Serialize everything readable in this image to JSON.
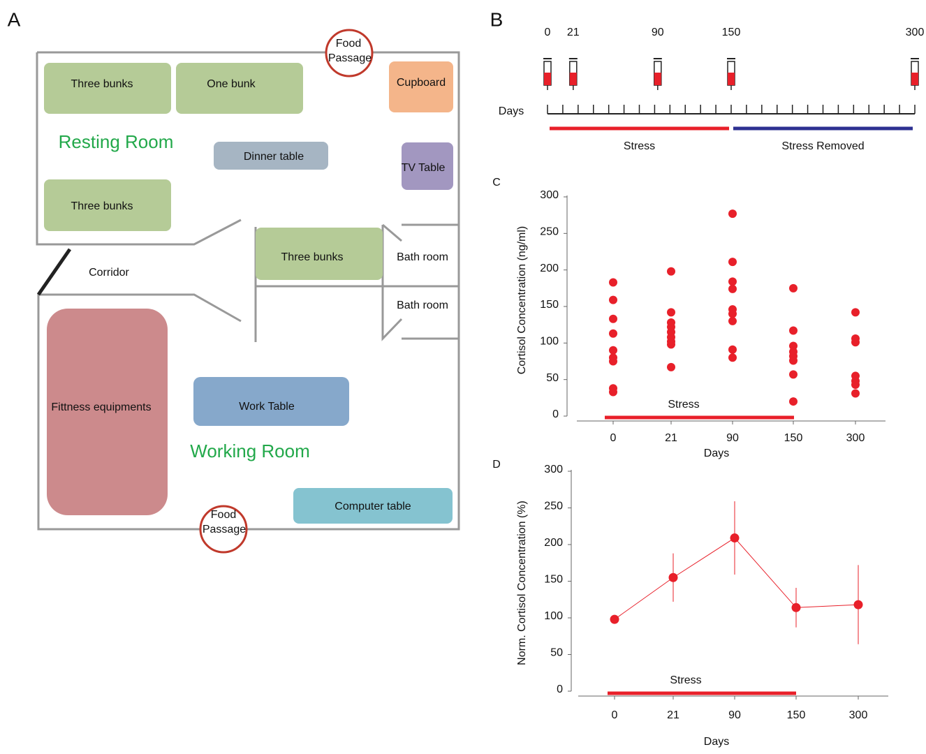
{
  "panel_labels": [
    "A",
    "B"
  ],
  "floor_plan": {
    "rooms": [
      {
        "label": "Three bunks"
      },
      {
        "label": "One bunk"
      },
      {
        "label": "Cupboard"
      },
      {
        "label": "Dinner table"
      },
      {
        "label": "TV Table"
      },
      {
        "label": "Three bunks"
      },
      {
        "label": "Three bunks"
      },
      {
        "label": "Fittness equipments"
      },
      {
        "label": "Work Table"
      },
      {
        "label": "Computer table"
      }
    ],
    "areas": [
      "Resting Room",
      "Working Room",
      "Corridor",
      "Bath room",
      "Bath room"
    ],
    "food_passages": [
      {
        "lines": [
          "Food",
          "Passage"
        ]
      },
      {
        "lines": [
          "Food",
          "Passage"
        ]
      }
    ]
  },
  "timeline": {
    "axis_label": "Days",
    "xlim": [
      0,
      300
    ],
    "sample_days": [
      0,
      21,
      90,
      150,
      300
    ],
    "phases": [
      {
        "name": "Stress",
        "color": "#e8202a",
        "start": 0,
        "end": 150
      },
      {
        "name": "Stress Removed",
        "color": "#2e3192",
        "start": 150,
        "end": 300
      }
    ]
  },
  "chart_data": [
    {
      "type": "scatter",
      "panel": "C",
      "ylabel": "Cortisol Concentration (ng/ml)",
      "xlabel": "Days",
      "categories": [
        "0",
        "21",
        "90",
        "150",
        "300"
      ],
      "color": "#e8202a",
      "values": [
        [
          183,
          159,
          133,
          113,
          90,
          80,
          75,
          38,
          33
        ],
        [
          198,
          142,
          128,
          122,
          115,
          108,
          102,
          98,
          67
        ],
        [
          277,
          211,
          184,
          174,
          146,
          140,
          130,
          91,
          80
        ],
        [
          175,
          117,
          96,
          88,
          82,
          76,
          57,
          20
        ],
        [
          142,
          106,
          101,
          55,
          48,
          43,
          31
        ]
      ],
      "ylim": [
        0,
        300
      ],
      "yticks": [
        0,
        50,
        100,
        150,
        200,
        250,
        300
      ],
      "annotation": {
        "text": "Stress",
        "color": "#e8202a"
      }
    },
    {
      "type": "line",
      "panel": "D",
      "ylabel": "Norm. Cortisol Concentration (%)",
      "xlabel": "Days",
      "categories": [
        "0",
        "21",
        "90",
        "150",
        "300"
      ],
      "color": "#e8202a",
      "values": [
        98,
        155,
        209,
        114,
        118
      ],
      "errors": [
        0,
        33,
        50,
        27,
        54
      ],
      "ylim": [
        0,
        300
      ],
      "yticks": [
        0,
        50,
        100,
        150,
        200,
        250,
        300
      ],
      "annotation": {
        "text": "Stress",
        "color": "#e8202a"
      }
    }
  ]
}
